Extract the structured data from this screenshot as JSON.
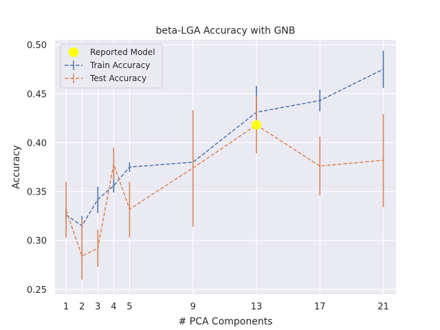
{
  "chart_data": {
    "type": "line",
    "title": "beta-LGA Accuracy with GNB",
    "xlabel": "# PCA Components",
    "ylabel": "Accuracy",
    "x": [
      1,
      2,
      3,
      4,
      5,
      9,
      13,
      17,
      21
    ],
    "xlim": [
      0.3,
      21.8
    ],
    "ylim": [
      0.245,
      0.505
    ],
    "yticks": [
      "0.25",
      "0.30",
      "0.35",
      "0.40",
      "0.45",
      "0.50"
    ],
    "grid": true,
    "legend_position": "top-left",
    "series": [
      {
        "name": "Train Accuracy",
        "color": "#4c72b0",
        "style": "dashed",
        "values": [
          0.326,
          0.315,
          0.342,
          0.356,
          0.375,
          0.38,
          0.431,
          0.443,
          0.475
        ],
        "err_low": [
          0.32,
          0.308,
          0.328,
          0.349,
          0.37,
          0.38,
          0.421,
          0.432,
          0.456
        ],
        "err_high": [
          0.332,
          0.325,
          0.355,
          0.37,
          0.38,
          0.38,
          0.458,
          0.454,
          0.494
        ]
      },
      {
        "name": "Test Accuracy",
        "color": "#dd8452",
        "style": "dashed",
        "values": [
          0.331,
          0.284,
          0.292,
          0.378,
          0.332,
          0.374,
          0.418,
          0.376,
          0.382
        ],
        "err_low": [
          0.303,
          0.26,
          0.273,
          0.362,
          0.303,
          0.314,
          0.389,
          0.346,
          0.334
        ],
        "err_high": [
          0.36,
          0.322,
          0.311,
          0.395,
          0.36,
          0.433,
          0.448,
          0.406,
          0.429
        ]
      }
    ],
    "highlight": {
      "name": "Reported Model",
      "x": 13,
      "y": 0.418,
      "color": "#ffff00"
    }
  }
}
